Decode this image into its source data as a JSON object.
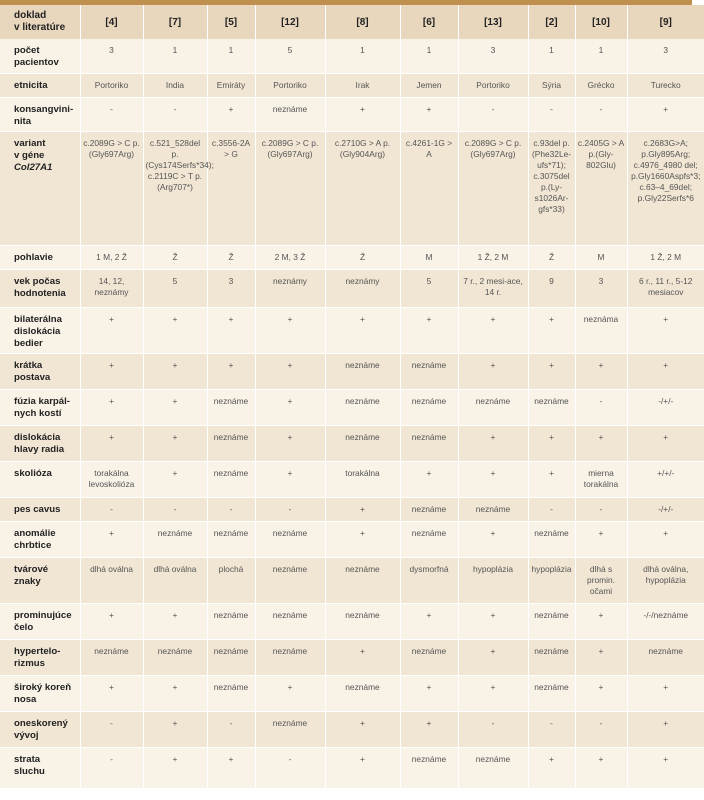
{
  "header": {
    "label_lines": [
      "doklad",
      "v literatúre"
    ],
    "refs": [
      "[4]",
      "[7]",
      "[5]",
      "[12]",
      "[8]",
      "[6]",
      "[13]",
      "[2]",
      "[10]",
      "[9]"
    ]
  },
  "rows": [
    {
      "label": [
        "počet",
        "pacientov"
      ],
      "height": 34,
      "cells": [
        "3",
        "1",
        "1",
        "5",
        "1",
        "1",
        "3",
        "1",
        "1",
        "3"
      ]
    },
    {
      "label": [
        "etnicita"
      ],
      "height": 24,
      "cells": [
        "Portoriko",
        "India",
        "Emiráty",
        "Portoriko",
        "Irak",
        "Jemen",
        "Portoriko",
        "Sýria",
        "Grécko",
        "Turecko"
      ]
    },
    {
      "label": [
        "konsangvini-",
        "nita"
      ],
      "height": 34,
      "cells": [
        "-",
        "-",
        "+",
        "neznáme",
        "+",
        "+",
        "-",
        "-",
        "-",
        "+"
      ]
    },
    {
      "label": [
        "variant",
        "v géne",
        "Col27A1"
      ],
      "height": 114,
      "cells": [
        "c.2089G > C p. (Gly697Arg)",
        "c.521_528del p. (Cys174Serfs*34); c.2119C > T p.(Arg707*)",
        "c.3556-2A > G",
        "c.2089G > C p. (Gly697Arg)",
        "c.2710G > A p.(Gly904Arg)",
        "c.4261-1G > A",
        "c.2089G > C p. (Gly697Arg)",
        "c.93del p. (Phe32Le-ufs*71); c.3075del p.(Ly-s1026Ar-gfs*33)",
        "c.2405G > A p.(Gly-802Glu)",
        "c.2683G>A; p.Gly895Arg; c.4976_4980 del; p.Gly1660Aspfs*3; c.63–4_69del; p.Gly22Serfs*6"
      ]
    },
    {
      "label": [
        "pohlavie"
      ],
      "height": 24,
      "cells": [
        "1 M, 2 Ž",
        "Ž",
        "Ž",
        "2 M, 3 Ž",
        "Ž",
        "M",
        "1 Ž, 2 M",
        "Ž",
        "M",
        "1 Ž, 2 M"
      ]
    },
    {
      "label": [
        "vek počas",
        "hodnotenia"
      ],
      "height": 38,
      "cells": [
        "14, 12, neznámy",
        "5",
        "3",
        "neznámy",
        "neznámy",
        "5",
        "7 r., 2 mesi-ace, 14 r.",
        "9",
        "3",
        "6 r., 11 r., 5-12 mesiacov"
      ]
    },
    {
      "label": [
        "bilaterálna",
        "dislokácia",
        "bedier"
      ],
      "height": 46,
      "cells": [
        "+",
        "+",
        "+",
        "+",
        "+",
        "+",
        "+",
        "+",
        "neznáma",
        "+"
      ]
    },
    {
      "label": [
        "krátka",
        "postava"
      ],
      "height": 36,
      "cells": [
        "+",
        "+",
        "+",
        "+",
        "neznáme",
        "neznáme",
        "+",
        "+",
        "+",
        "+"
      ]
    },
    {
      "label": [
        "fúzia karpál-",
        "nych kostí"
      ],
      "height": 36,
      "cells": [
        "+",
        "+",
        "neznáme",
        "+",
        "neznáme",
        "neznáme",
        "neznáme",
        "neznáme",
        "-",
        "-/+/-"
      ]
    },
    {
      "label": [
        "dislokácia",
        "hlavy radia"
      ],
      "height": 36,
      "cells": [
        "+",
        "+",
        "neznáme",
        "+",
        "neznáme",
        "neznáme",
        "+",
        "+",
        "+",
        "+"
      ]
    },
    {
      "label": [
        "skolióza"
      ],
      "height": 36,
      "cells": [
        "torakálna levoskolióza",
        "+",
        "neznáme",
        "+",
        "torakálna",
        "+",
        "+",
        "+",
        "mierna torakálna",
        "+/+/-"
      ]
    },
    {
      "label": [
        "pes cavus"
      ],
      "height": 24,
      "cells": [
        "-",
        "-",
        "-",
        "-",
        "+",
        "neznáme",
        "neznáme",
        "-",
        "-",
        "-/+/-"
      ]
    },
    {
      "label": [
        "anomálie",
        "chrbtice"
      ],
      "height": 36,
      "cells": [
        "+",
        "neznáme",
        "neznáme",
        "neznáme",
        "+",
        "neznáme",
        "+",
        "neznáme",
        "+",
        "+"
      ]
    },
    {
      "label": [
        "tvárové",
        "znaky"
      ],
      "height": 46,
      "cells": [
        "dlhá oválna",
        "dlhá oválna",
        "plochá",
        "neznáme",
        "neznáme",
        "dysmorfná",
        "hypoplázia",
        "hypoplázia",
        "dlhá s promin. očami",
        "dlhá oválna, hypoplázia"
      ]
    },
    {
      "label": [
        "prominujúce",
        "čelo"
      ],
      "height": 36,
      "cells": [
        "+",
        "+",
        "neznáme",
        "neznáme",
        "neznáme",
        "+",
        "+",
        "neznáme",
        "+",
        "-/-/neznáme"
      ]
    },
    {
      "label": [
        "hypertelo-",
        "rizmus"
      ],
      "height": 36,
      "cells": [
        "neznáme",
        "neznáme",
        "neznáme",
        "neznáme",
        "+",
        "neznáme",
        "+",
        "neznáme",
        "+",
        "neznáme"
      ]
    },
    {
      "label": [
        "široký koreň",
        "nosa"
      ],
      "height": 36,
      "cells": [
        "+",
        "+",
        "neznáme",
        "+",
        "neznáme",
        "+",
        "+",
        "neznáme",
        "+",
        "+"
      ]
    },
    {
      "label": [
        "oneskorený",
        "vývoj"
      ],
      "height": 36,
      "cells": [
        "-",
        "+",
        "-",
        "neznáme",
        "+",
        "+",
        "-",
        "-",
        "-",
        "+"
      ]
    },
    {
      "label": [
        "strata",
        "sluchu"
      ],
      "height": 41,
      "cells": [
        "-",
        "+",
        "+",
        "-",
        "+",
        "neznáme",
        "neznáme",
        "+",
        "+",
        "+"
      ]
    }
  ]
}
